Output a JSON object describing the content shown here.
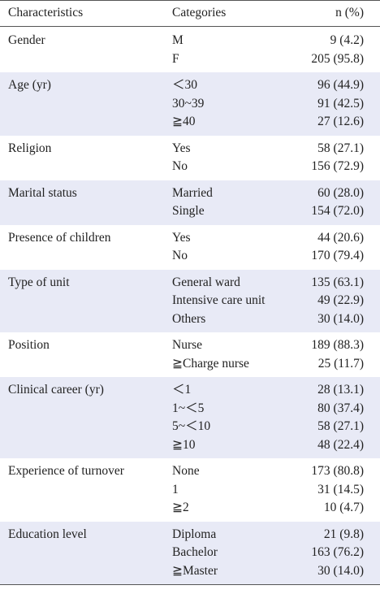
{
  "table": {
    "header": [
      "Characteristics",
      "Categories",
      "n (%)"
    ],
    "groups": [
      {
        "characteristic": "Gender",
        "rows": [
          [
            "M",
            "9 (4.2)"
          ],
          [
            "F",
            "205 (95.8)"
          ]
        ]
      },
      {
        "characteristic": "Age (yr)",
        "rows": [
          [
            "＜30",
            "96 (44.9)"
          ],
          [
            "30~39",
            "91 (42.5)"
          ],
          [
            "≧40",
            "27 (12.6)"
          ]
        ]
      },
      {
        "characteristic": "Religion",
        "rows": [
          [
            "Yes",
            "58 (27.1)"
          ],
          [
            "No",
            "156 (72.9)"
          ]
        ]
      },
      {
        "characteristic": "Marital status",
        "rows": [
          [
            "Married",
            "60 (28.0)"
          ],
          [
            "Single",
            "154 (72.0)"
          ]
        ]
      },
      {
        "characteristic": "Presence of children",
        "rows": [
          [
            "Yes",
            "44 (20.6)"
          ],
          [
            "No",
            "170 (79.4)"
          ]
        ]
      },
      {
        "characteristic": "Type of unit",
        "rows": [
          [
            "General ward",
            "135 (63.1)"
          ],
          [
            "Intensive care unit",
            "49 (22.9)"
          ],
          [
            "Others",
            "30 (14.0)"
          ]
        ]
      },
      {
        "characteristic": "Position",
        "rows": [
          [
            "Nurse",
            "189 (88.3)"
          ],
          [
            "≧Charge nurse",
            "25 (11.7)"
          ]
        ]
      },
      {
        "characteristic": "Clinical career (yr)",
        "rows": [
          [
            "＜1",
            "28 (13.1)"
          ],
          [
            "1~＜5",
            "80 (37.4)"
          ],
          [
            "5~＜10",
            "58 (27.1)"
          ],
          [
            "≧10",
            "48 (22.4)"
          ]
        ]
      },
      {
        "characteristic": "Experience of turnover",
        "rows": [
          [
            "None",
            "173 (80.8)"
          ],
          [
            "1",
            "31 (14.5)"
          ],
          [
            "≧2",
            "10 (4.7)"
          ]
        ]
      },
      {
        "characteristic": "Education level",
        "rows": [
          [
            "Diploma",
            "21 (9.8)"
          ],
          [
            "Bachelor",
            "163 (76.2)"
          ],
          [
            "≧Master",
            "30 (14.0)"
          ]
        ]
      }
    ]
  }
}
